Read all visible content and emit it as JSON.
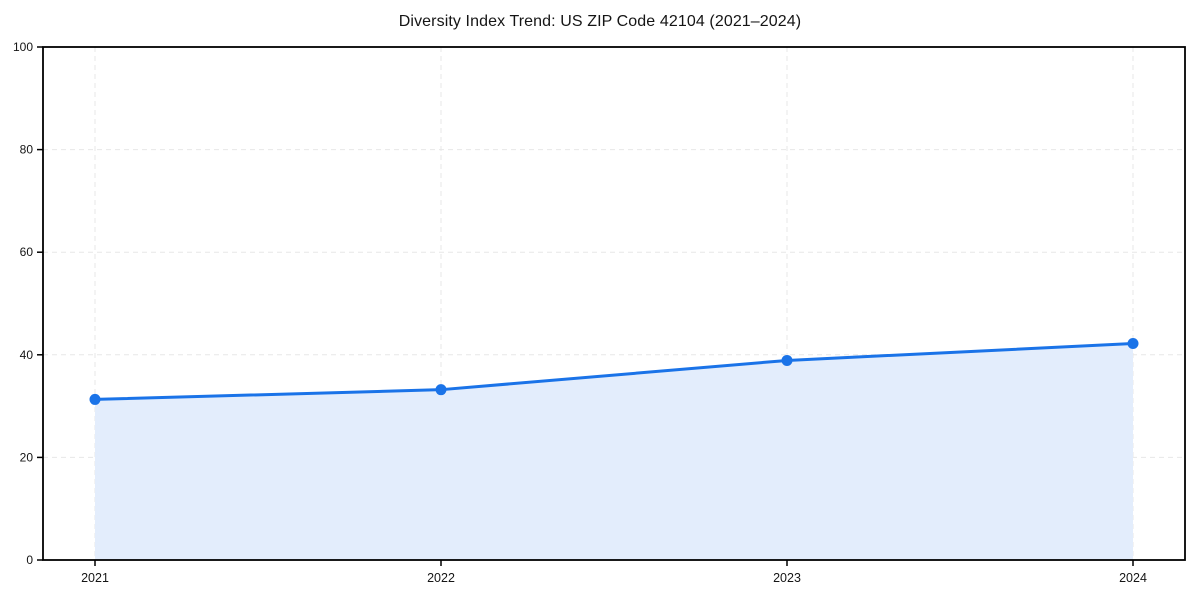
{
  "chart_data": {
    "type": "area",
    "title": "Diversity Index Trend: US ZIP Code 42104 (2021–2024)",
    "categories": [
      "2021",
      "2022",
      "2023",
      "2024"
    ],
    "series": [
      {
        "name": "Diversity Index",
        "values": [
          31.3,
          33.2,
          38.9,
          42.2
        ]
      }
    ],
    "xlabel": "",
    "ylabel": "",
    "ylim": [
      0,
      100
    ],
    "yticks": [
      0,
      20,
      40,
      60,
      80,
      100
    ],
    "grid": true,
    "grid_style": "dashed",
    "legend_position": "none",
    "colors": {
      "line": "#1a73e8",
      "marker": "#1a73e8",
      "area_fill": "#e3edfc",
      "grid": "#e7e7e7",
      "axis": "#000000",
      "tick_text": "#151515",
      "background": "#ffffff"
    }
  }
}
